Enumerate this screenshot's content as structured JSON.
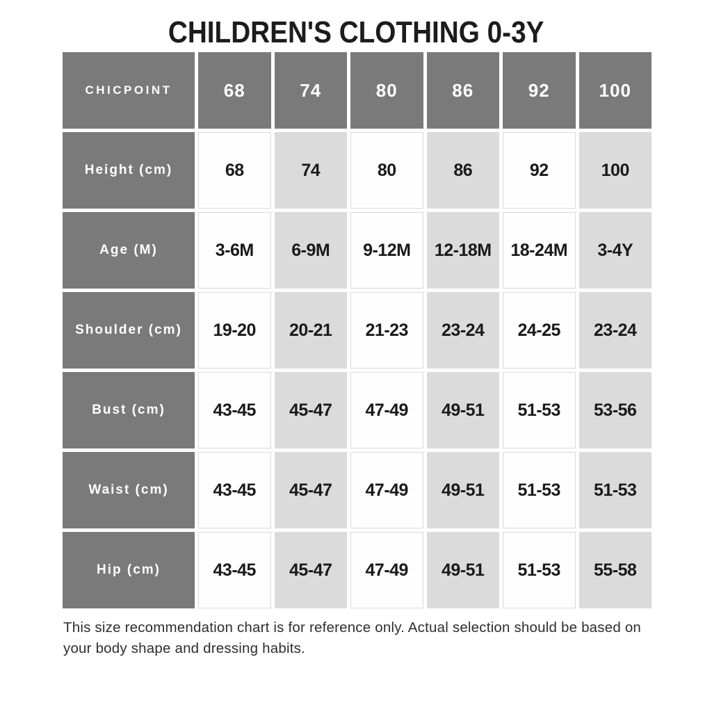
{
  "page": {
    "title": "CHILDREN'S CLOTHING 0-3Y",
    "footer": "This size recommendation chart is for reference only. Actual selection should be based on your body shape and dressing habits."
  },
  "colors": {
    "header_gray": "#7a7a7a",
    "alt_cell_gray": "#dbdbdb",
    "white_cell_border": "#d9d9d9",
    "text_black": "#1a1a1a",
    "footer_text": "#2e2e2e"
  },
  "chart_data": {
    "type": "table",
    "title": "CHILDREN'S CLOTHING 0-3Y",
    "brand": "CHICPOINT",
    "columns": [
      "68",
      "74",
      "80",
      "86",
      "92",
      "100"
    ],
    "rows": [
      {
        "label": "Height (cm)",
        "values": [
          "68",
          "74",
          "80",
          "86",
          "92",
          "100"
        ]
      },
      {
        "label": "Age (M)",
        "values": [
          "3-6M",
          "6-9M",
          "9-12M",
          "12-18M",
          "18-24M",
          "3-4Y"
        ]
      },
      {
        "label": "Shoulder (cm)",
        "values": [
          "19-20",
          "20-21",
          "21-23",
          "23-24",
          "24-25",
          "23-24"
        ]
      },
      {
        "label": "Bust (cm)",
        "values": [
          "43-45",
          "45-47",
          "47-49",
          "49-51",
          "51-53",
          "53-56"
        ]
      },
      {
        "label": "Waist (cm)",
        "values": [
          "43-45",
          "45-47",
          "47-49",
          "49-51",
          "51-53",
          "51-53"
        ]
      },
      {
        "label": "Hip (cm)",
        "values": [
          "43-45",
          "45-47",
          "47-49",
          "49-51",
          "51-53",
          "55-58"
        ]
      }
    ],
    "layout": {
      "alternating_columns": "odd columns white, even columns light gray",
      "header_style": "dark gray background, white text",
      "grid": "white gaps between cells"
    }
  }
}
